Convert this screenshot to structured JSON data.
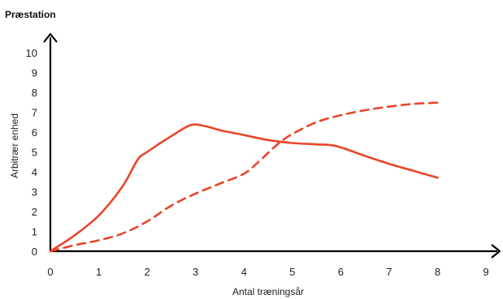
{
  "chart_data": {
    "type": "line",
    "title": "Præstation",
    "xlabel": "Antal træningsår",
    "ylabel": "Arbitrær enhed",
    "xlim": [
      0,
      9
    ],
    "ylim": [
      0,
      10
    ],
    "x_ticks": [
      0,
      1,
      2,
      3,
      4,
      5,
      6,
      7,
      8,
      9
    ],
    "y_ticks": [
      0,
      1,
      2,
      3,
      4,
      5,
      6,
      7,
      8,
      9,
      10
    ],
    "grid": false,
    "legend": "none",
    "series": [
      {
        "style": "solid",
        "color": "#e8462a",
        "points": [
          [
            0,
            0
          ],
          [
            0.5,
            0.8
          ],
          [
            1,
            1.8
          ],
          [
            1.5,
            3.3
          ],
          [
            1.8,
            4.6
          ],
          [
            2,
            5.0
          ],
          [
            2.5,
            5.8
          ],
          [
            2.9,
            6.35
          ],
          [
            3.2,
            6.3
          ],
          [
            3.5,
            6.1
          ],
          [
            4,
            5.85
          ],
          [
            4.5,
            5.6
          ],
          [
            5,
            5.45
          ],
          [
            5.5,
            5.38
          ],
          [
            5.9,
            5.3
          ],
          [
            6.5,
            4.8
          ],
          [
            7,
            4.4
          ],
          [
            7.5,
            4.05
          ],
          [
            8,
            3.7
          ]
        ]
      },
      {
        "style": "dashed",
        "color": "#e8462a",
        "points": [
          [
            0,
            0
          ],
          [
            0.5,
            0.3
          ],
          [
            1,
            0.55
          ],
          [
            1.5,
            0.9
          ],
          [
            2,
            1.5
          ],
          [
            2.5,
            2.3
          ],
          [
            3,
            2.9
          ],
          [
            3.5,
            3.4
          ],
          [
            4,
            3.9
          ],
          [
            4.3,
            4.5
          ],
          [
            4.7,
            5.4
          ],
          [
            5,
            5.9
          ],
          [
            5.5,
            6.5
          ],
          [
            6,
            6.85
          ],
          [
            6.5,
            7.1
          ],
          [
            7,
            7.28
          ],
          [
            7.5,
            7.42
          ],
          [
            8,
            7.48
          ]
        ]
      }
    ]
  }
}
